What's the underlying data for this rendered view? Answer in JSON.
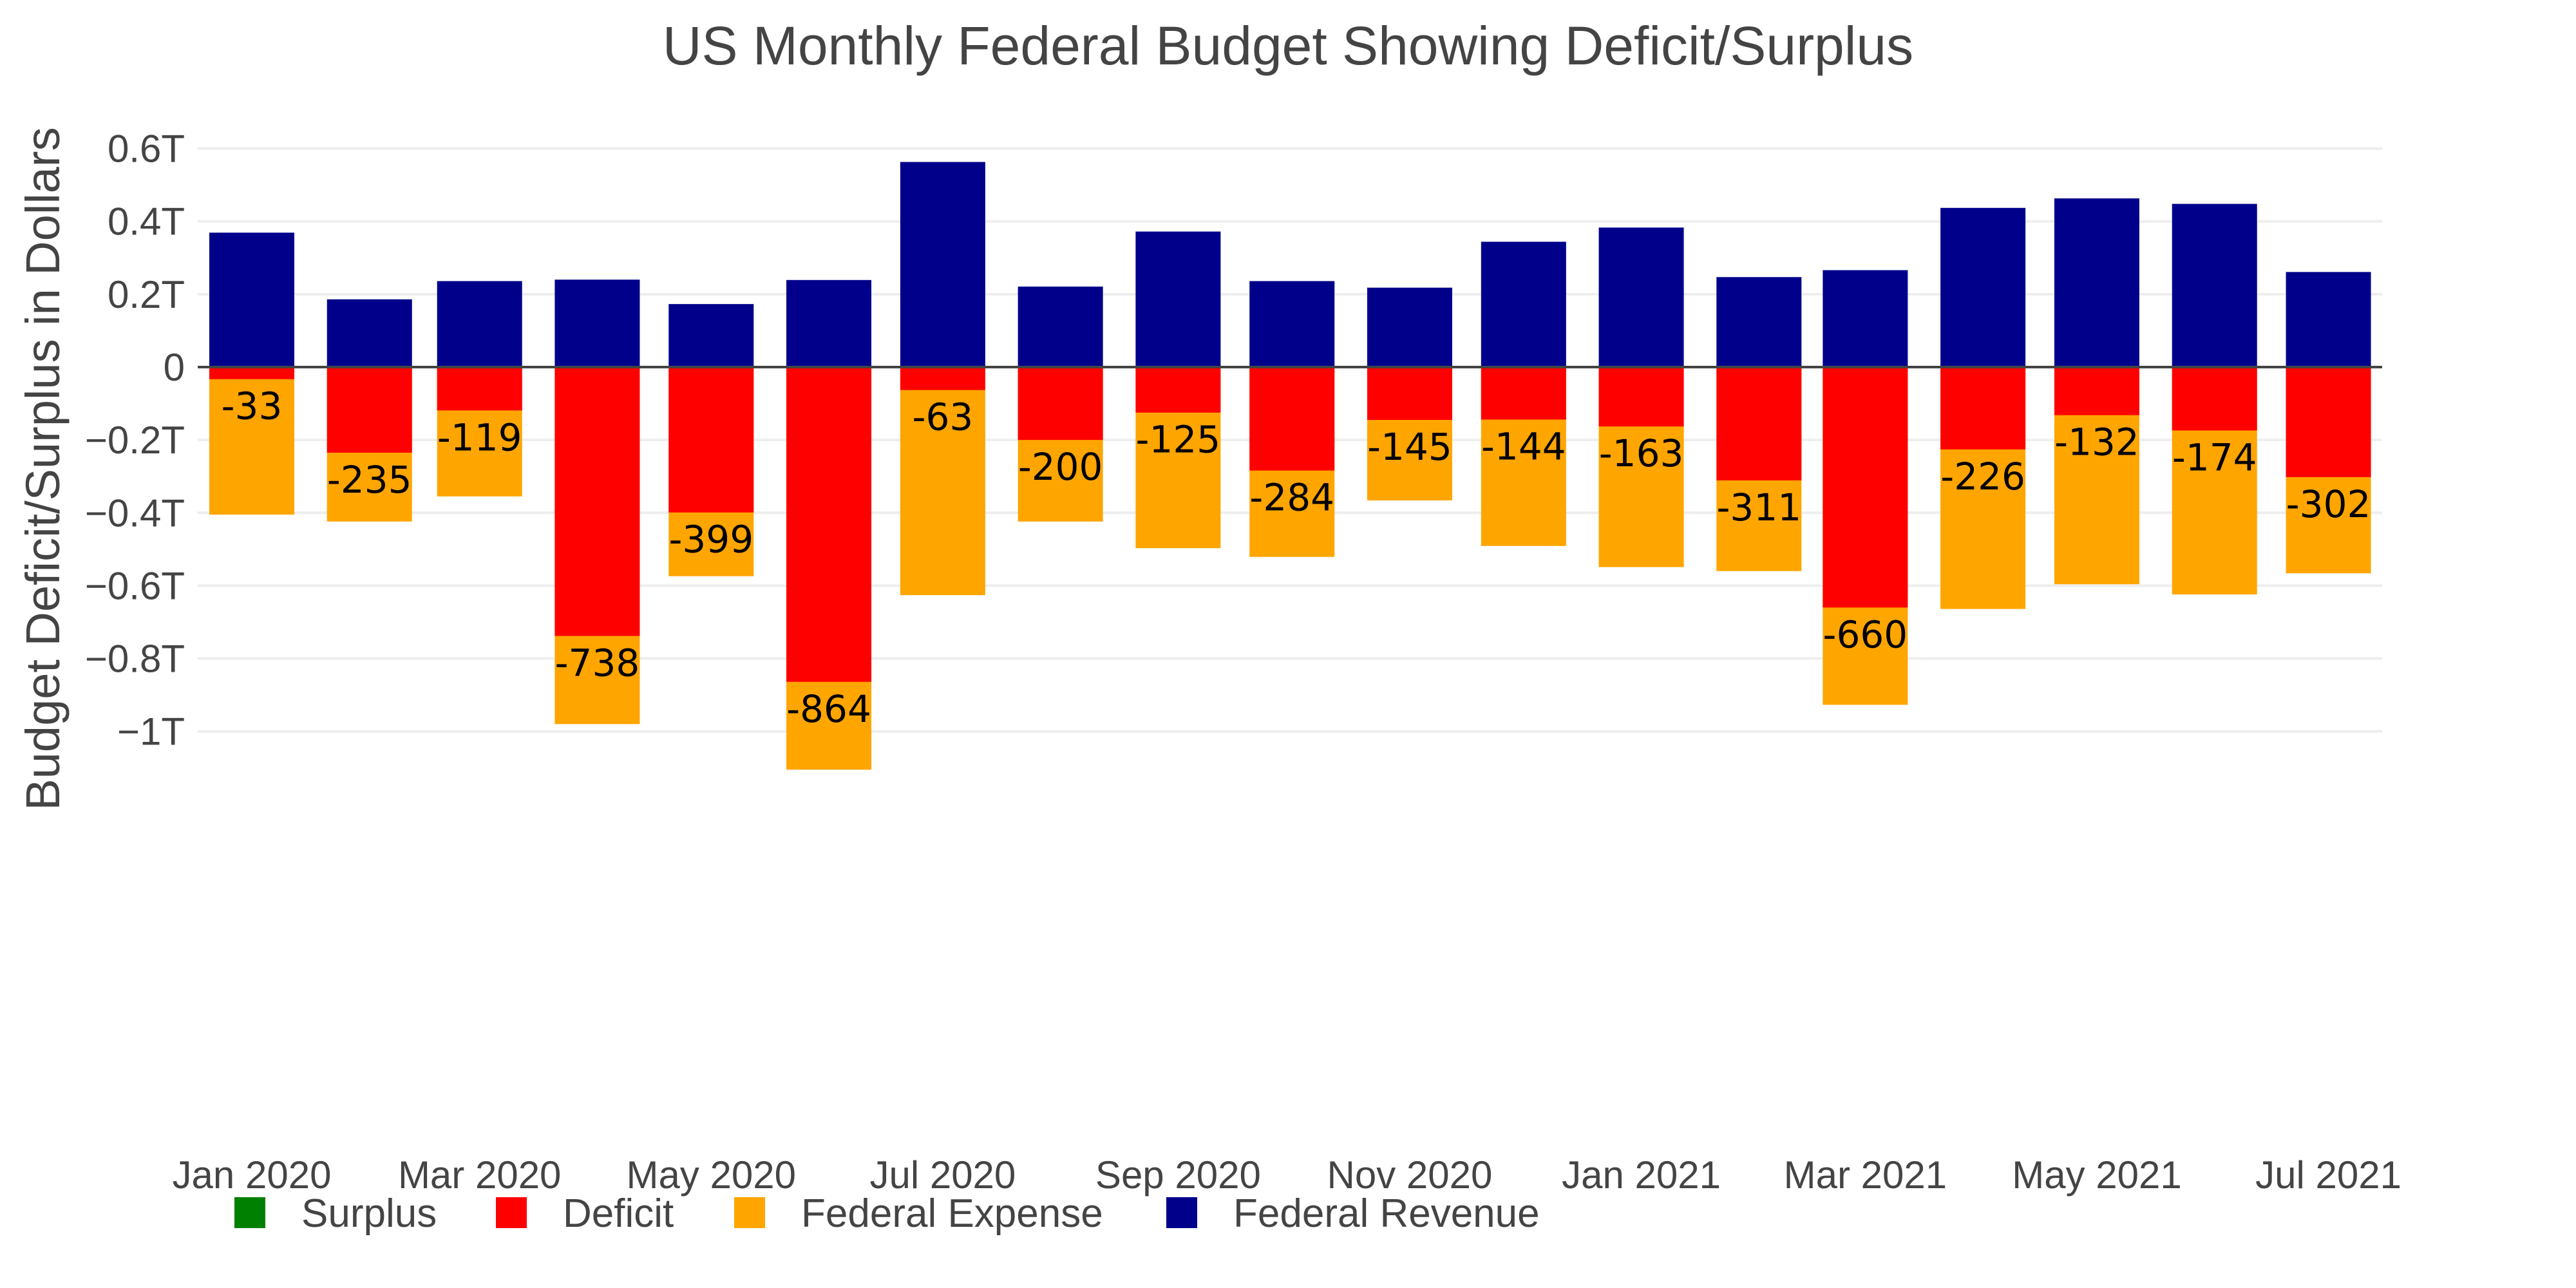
{
  "chart_data": {
    "type": "bar",
    "barmode": "overlay",
    "title": "US Monthly Federal Budget Showing Deficit/Surplus",
    "xlabel": "",
    "ylabel": "Budget Deficit/Surplus in Dollars",
    "ylim": [
      -1.13,
      0.68
    ],
    "y_unit": "T",
    "grid": true,
    "legend_position": "bottom-left",
    "x_ticks": [
      "Jan 2020",
      "Mar 2020",
      "May 2020",
      "Jul 2020",
      "Sep 2020",
      "Nov 2020",
      "Jan 2021",
      "Mar 2021",
      "May 2021",
      "Jul 2021"
    ],
    "x_tick_dates": [
      "2020-01-01",
      "2020-03-01",
      "2020-05-01",
      "2020-07-01",
      "2020-09-01",
      "2020-11-01",
      "2021-01-01",
      "2021-03-01",
      "2021-05-01",
      "2021-07-01"
    ],
    "y_ticks": [
      {
        "value": 0.6,
        "label": "0.6T"
      },
      {
        "value": 0.4,
        "label": "0.4T"
      },
      {
        "value": 0.2,
        "label": "0.2T"
      },
      {
        "value": 0,
        "label": "0"
      },
      {
        "value": -0.2,
        "label": "−0.2T"
      },
      {
        "value": -0.4,
        "label": "−0.4T"
      },
      {
        "value": -0.6,
        "label": "−0.6T"
      },
      {
        "value": -0.8,
        "label": "−0.8T"
      },
      {
        "value": -1.0,
        "label": "−1T"
      }
    ],
    "categories": [
      "2020-01-01",
      "2020-02-01",
      "2020-03-01",
      "2020-04-01",
      "2020-05-01",
      "2020-06-01",
      "2020-07-01",
      "2020-08-01",
      "2020-09-01",
      "2020-10-01",
      "2020-11-01",
      "2020-12-01",
      "2021-01-01",
      "2021-02-01",
      "2021-03-01",
      "2021-04-01",
      "2021-05-01",
      "2021-06-01",
      "2021-07-01"
    ],
    "series": [
      {
        "name": "Surplus",
        "color": "#008000",
        "values": [
          0,
          0,
          0,
          0,
          0,
          0,
          0,
          0,
          0,
          0,
          0,
          0,
          0,
          0,
          0,
          0,
          0,
          0,
          0
        ]
      },
      {
        "name": "Deficit",
        "color": "#ff0000",
        "values": [
          -0.033,
          -0.235,
          -0.119,
          -0.738,
          -0.399,
          -0.864,
          -0.063,
          -0.2,
          -0.125,
          -0.284,
          -0.145,
          -0.144,
          -0.163,
          -0.311,
          -0.66,
          -0.226,
          -0.132,
          -0.174,
          -0.302
        ]
      },
      {
        "name": "Federal Expense",
        "color": "#ffa500",
        "values": [
          -0.405,
          -0.424,
          -0.355,
          -0.98,
          -0.574,
          -1.105,
          -0.626,
          -0.424,
          -0.497,
          -0.521,
          -0.366,
          -0.491,
          -0.549,
          -0.56,
          -0.927,
          -0.664,
          -0.596,
          -0.624,
          -0.566
        ]
      },
      {
        "name": "Federal Revenue",
        "color": "#00008b",
        "values": [
          0.369,
          0.186,
          0.236,
          0.24,
          0.173,
          0.239,
          0.563,
          0.221,
          0.372,
          0.236,
          0.218,
          0.344,
          0.383,
          0.247,
          0.266,
          0.437,
          0.463,
          0.448,
          0.261
        ]
      }
    ],
    "data_labels": [
      "-33",
      "-235",
      "-119",
      "-738",
      "-399",
      "-864",
      "-63",
      "-200",
      "-125",
      "-284",
      "-145",
      "-144",
      "-163",
      "-311",
      "-660",
      "-226",
      "-132",
      "-174",
      "-302"
    ]
  }
}
